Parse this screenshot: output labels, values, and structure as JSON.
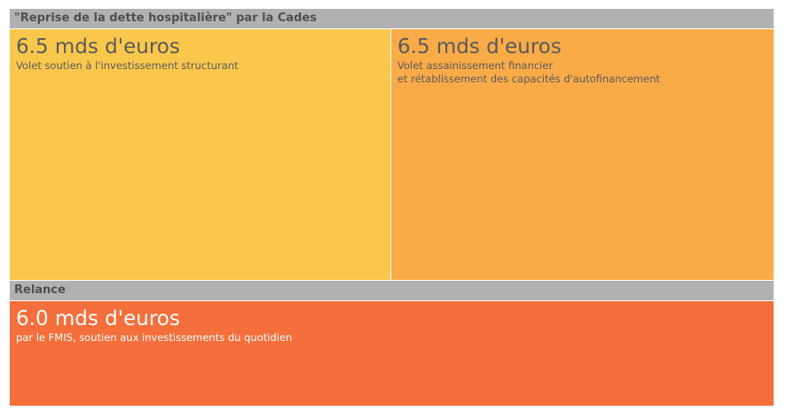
{
  "chart_data": {
    "type": "treemap",
    "groups": [
      {
        "name": "\"Reprise de la dette hospitalière\" par la Cades",
        "items": [
          {
            "value": 6.5,
            "label": "6.5 mds d'euros",
            "description": "Volet soutien à l'investissement structurant",
            "color": "#fac74d"
          },
          {
            "value": 6.5,
            "label": "6.5 mds d'euros",
            "description": "Volet assainissement financier\net rétablissement des capacités d'autofinancement",
            "color": "#f9ab48"
          }
        ]
      },
      {
        "name": "Relance",
        "items": [
          {
            "value": 6.0,
            "label": "6.0 mds d'euros",
            "description": "par le FMIS, soutien aux investissements du quotidien",
            "color": "#f46f3b"
          }
        ]
      }
    ]
  },
  "colors": {
    "header_bg": "#b1b1b1",
    "header_text": "#505050"
  }
}
